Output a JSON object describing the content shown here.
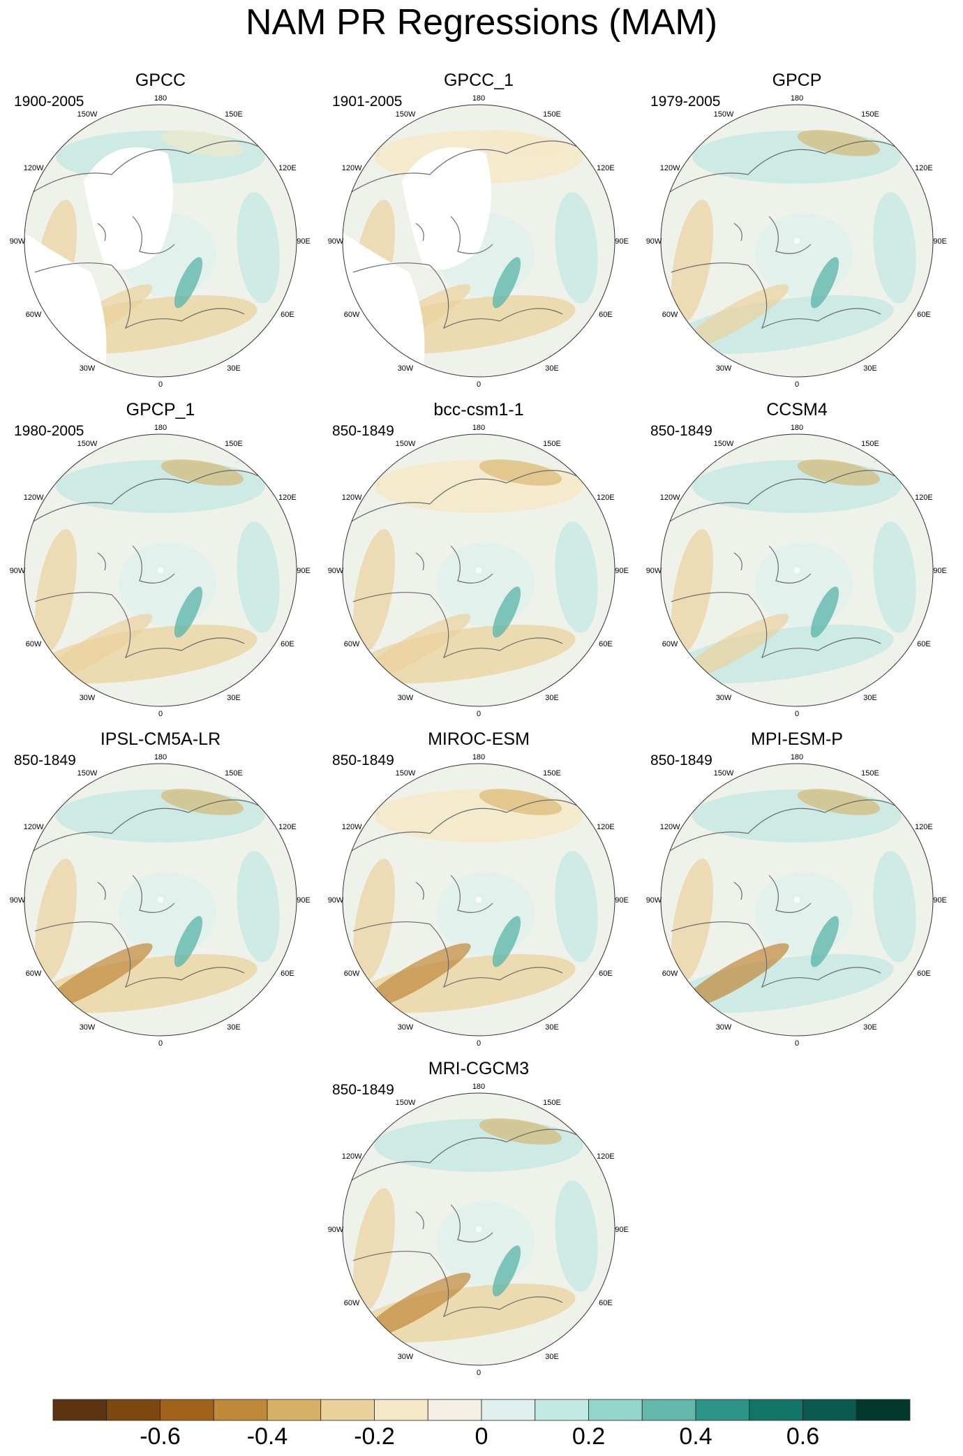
{
  "title": "NAM PR Regressions (MAM)",
  "lon_labels": [
    "180",
    "150E",
    "120E",
    "90E",
    "60E",
    "30E",
    "0",
    "30W",
    "60W",
    "90W",
    "120W",
    "150W"
  ],
  "panels": [
    {
      "title": "GPCC",
      "period": "1900-2005",
      "mask_arctic": true
    },
    {
      "title": "GPCC_1",
      "period": "1901-2005",
      "mask_arctic": true
    },
    {
      "title": "GPCP",
      "period": "1979-2005"
    },
    {
      "title": "GPCP_1",
      "period": "1980-2005"
    },
    {
      "title": "bcc-csm1-1",
      "period": "850-1849"
    },
    {
      "title": "CCSM4",
      "period": "850-1849"
    },
    {
      "title": "IPSL-CM5A-LR",
      "period": "850-1849"
    },
    {
      "title": "MIROC-ESM",
      "period": "850-1849"
    },
    {
      "title": "MPI-ESM-P",
      "period": "850-1849"
    },
    {
      "title": "MRI-CGCM3",
      "period": "850-1849"
    }
  ],
  "colorbar": {
    "colors": [
      "#5c3310",
      "#7d4810",
      "#a0621b",
      "#c0893a",
      "#d6b064",
      "#ebd29c",
      "#f6e8c6",
      "#f4efe4",
      "#e0f0ee",
      "#c2e8e2",
      "#93d5c9",
      "#62b8ab",
      "#2f9488",
      "#137468",
      "#0a5a4f",
      "#03382f"
    ],
    "ticks": [
      {
        "label": "-0.6",
        "value": -0.6
      },
      {
        "label": "-0.4",
        "value": -0.4
      },
      {
        "label": "-0.2",
        "value": -0.2
      },
      {
        "label": "0",
        "value": 0
      },
      {
        "label": "0.2",
        "value": 0.2
      },
      {
        "label": "0.4",
        "value": 0.4
      },
      {
        "label": "0.6",
        "value": 0.6
      }
    ],
    "range": [
      -0.8,
      0.8
    ]
  }
}
